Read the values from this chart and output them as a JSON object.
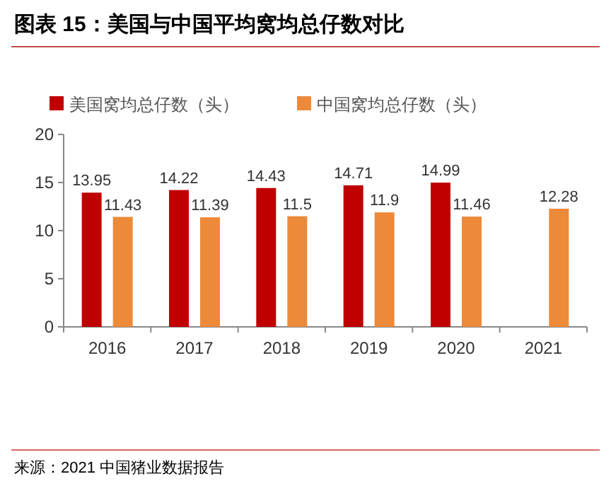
{
  "chart_data": {
    "type": "bar",
    "title": "图表 15：美国与中国平均窝均总仔数对比",
    "categories": [
      "2016",
      "2017",
      "2018",
      "2019",
      "2020",
      "2021"
    ],
    "series": [
      {
        "name": "美国窝均总仔数（头）",
        "color": "#c00000",
        "values": [
          13.95,
          14.22,
          14.43,
          14.71,
          14.99,
          null
        ]
      },
      {
        "name": "中国窝均总仔数（头）",
        "color": "#ed8a3a",
        "values": [
          11.43,
          11.39,
          11.5,
          11.9,
          11.46,
          12.28
        ]
      }
    ],
    "ylim": [
      0,
      20
    ],
    "yticks": [
      0,
      5,
      10,
      15,
      20
    ],
    "data_labels": true,
    "legend": "top left",
    "annotations": [
      "来源：2021 中国猪业数据报告"
    ]
  }
}
